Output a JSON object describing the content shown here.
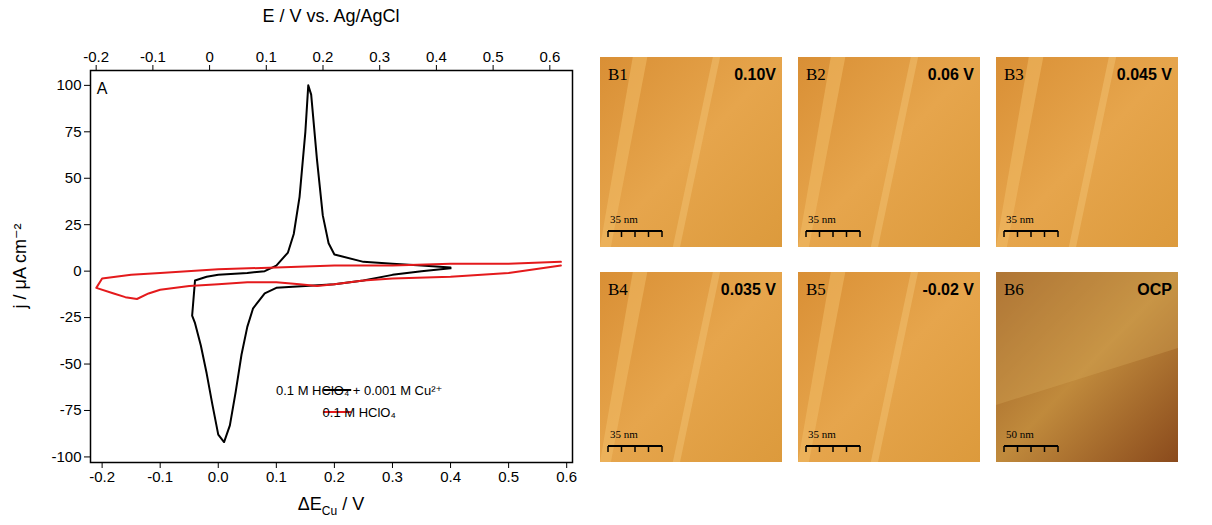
{
  "chart_data": {
    "type": "line",
    "panel_label": "A",
    "xlabel_parts": [
      {
        "text": "ΔE"
      },
      {
        "text": "Cu",
        "sub": true
      },
      {
        "text": " / V"
      }
    ],
    "x2label": "E / V vs. Ag/AgCl",
    "ylabel": "j / μA cm⁻²",
    "xlim": [
      -0.22,
      0.61
    ],
    "xticks": [
      -0.2,
      -0.1,
      {
        "value": 0,
        "label": "0.0"
      },
      0.1,
      0.2,
      0.3,
      0.4,
      0.5,
      0.6
    ],
    "x2lim": [
      -0.21,
      0.64
    ],
    "x2ticks": [
      -0.2,
      -0.1,
      0,
      0.1,
      0.2,
      0.3,
      0.4,
      0.5,
      0.6
    ],
    "ylim": [
      -103,
      108
    ],
    "yticks": [
      -100,
      -75,
      -50,
      -25,
      0,
      25,
      50,
      75,
      100
    ],
    "legend": "lower right",
    "series": [
      {
        "name": "0.1 M HClO₄ + 0.001 M Cu²⁺",
        "color": "#000000",
        "line_style": "solid",
        "x": [
          0.4,
          0.35,
          0.3,
          0.25,
          0.2,
          0.15,
          0.1,
          0.08,
          0.06,
          0.05,
          0.04,
          0.03,
          0.02,
          0.01,
          0.0,
          -0.01,
          -0.02,
          -0.03,
          -0.04,
          -0.045,
          -0.04,
          -0.02,
          0.0,
          0.05,
          0.08,
          0.1,
          0.12,
          0.13,
          0.14,
          0.15,
          0.155,
          0.16,
          0.17,
          0.18,
          0.19,
          0.2,
          0.25,
          0.3,
          0.35,
          0.4
        ],
        "values": [
          1.5,
          0,
          -2,
          -5,
          -7,
          -8,
          -9,
          -12,
          -20,
          -30,
          -45,
          -65,
          -83,
          -92,
          -88,
          -72,
          -55,
          -40,
          -28,
          -24,
          -5,
          -3,
          -2,
          -1,
          0,
          3,
          10,
          20,
          40,
          75,
          100,
          95,
          60,
          30,
          15,
          9,
          5,
          4,
          3,
          2
        ]
      },
      {
        "name": "0.1 M HClO₄",
        "color": "#e41a1c",
        "line_style": "solid",
        "x": [
          0.59,
          0.5,
          0.4,
          0.3,
          0.25,
          0.2,
          0.17,
          0.14,
          0.1,
          0.05,
          0.0,
          -0.05,
          -0.1,
          -0.12,
          -0.14,
          -0.16,
          -0.18,
          -0.21,
          -0.2,
          -0.15,
          -0.1,
          0.0,
          0.1,
          0.2,
          0.3,
          0.4,
          0.5,
          0.59
        ],
        "values": [
          3,
          -1,
          -3,
          -4,
          -5,
          -7,
          -8,
          -7,
          -6,
          -6,
          -7,
          -8,
          -10,
          -12,
          -15,
          -14,
          -12,
          -9,
          -4,
          -2,
          -1,
          1,
          2,
          3,
          3,
          4,
          4,
          5
        ]
      }
    ]
  },
  "images": [
    {
      "label": "B1",
      "potential": "0.10V",
      "scale_bar": "35 nm"
    },
    {
      "label": "B2",
      "potential": "0.06 V",
      "scale_bar": "35 nm"
    },
    {
      "label": "B3",
      "potential": "0.045 V",
      "scale_bar": "35 nm"
    },
    {
      "label": "B4",
      "potential": "0.035 V",
      "scale_bar": "35 nm"
    },
    {
      "label": "B5",
      "potential": "-0.02 V",
      "scale_bar": "35 nm"
    },
    {
      "label": "B6",
      "potential": "OCP",
      "scale_bar": "50 nm"
    }
  ]
}
